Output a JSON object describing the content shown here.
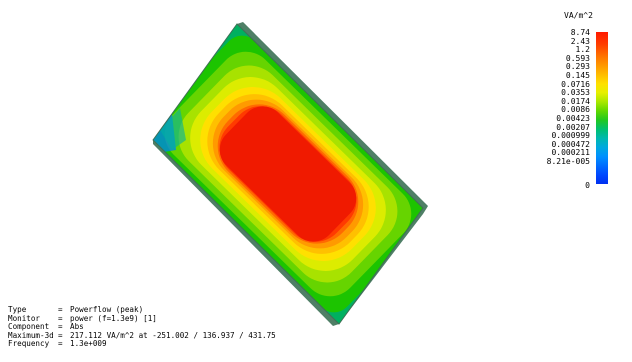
{
  "legend": {
    "unit": "VA/m^2",
    "ticks": [
      "8.74",
      "2.43",
      "1.2",
      "0.593",
      "0.293",
      "0.145",
      "0.0716",
      "0.0353",
      "0.0174",
      "0.0086",
      "0.00423",
      "0.00207",
      "0.000999",
      "0.000472",
      "0.000211",
      "8.21e-005",
      "0"
    ]
  },
  "info": [
    {
      "key": "Type",
      "value": "Powerflow (peak)"
    },
    {
      "key": "Monitor",
      "value": "power (f=1.3e9) [1]"
    },
    {
      "key": "Component",
      "value": "Abs"
    },
    {
      "key": "Maximum-3d",
      "value": "217.112 VA/m^2 at -251.002 / 136.937 / 431.75"
    },
    {
      "key": "Frequency",
      "value": "1.3e+009"
    }
  ],
  "colors": {
    "hot": "#ff1a00",
    "warm": "#ffe000",
    "mid": "#20c820",
    "cool": "#0090ff",
    "edge": "#5a8a70"
  }
}
